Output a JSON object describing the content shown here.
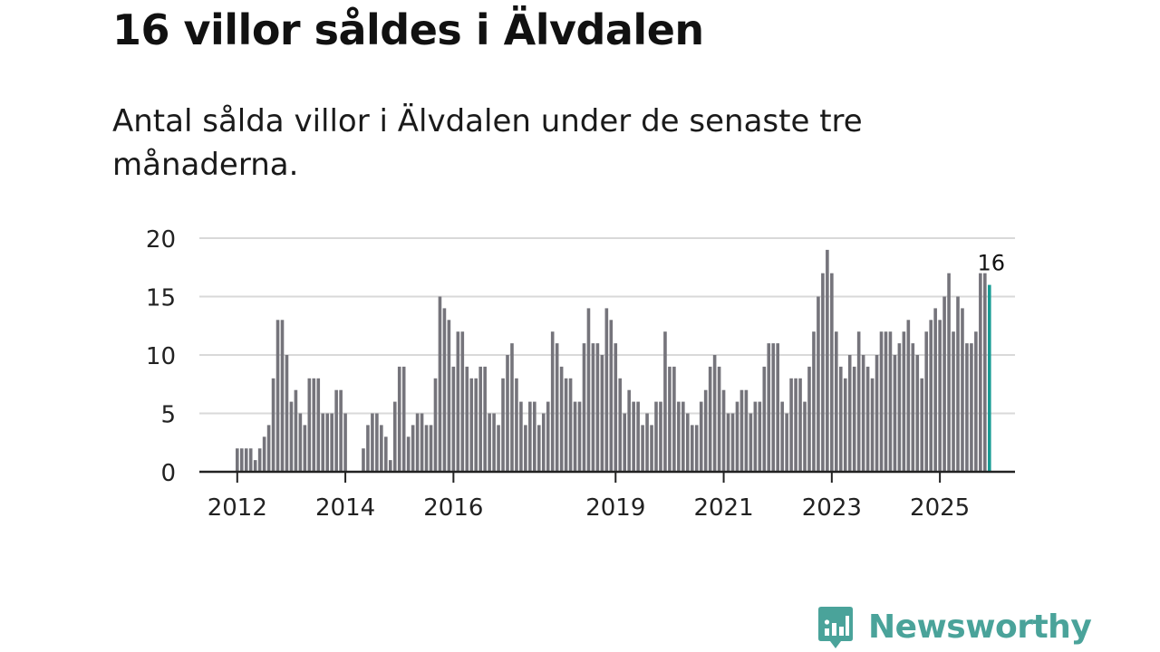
{
  "title": "16 villor såldes i Älvdalen",
  "subtitle": "Antal sålda villor i Älvdalen under de senaste tre månaderna.",
  "colors": {
    "bar": "#75747b",
    "highlight": "#179c94",
    "grid": "#d9d9d9",
    "axis": "#222222",
    "brand": "#4aa39a"
  },
  "chart_data": {
    "type": "bar",
    "title": "16 villor såldes i Älvdalen",
    "xlabel": "",
    "ylabel": "",
    "ylim": [
      0,
      20
    ],
    "yticks": [
      0,
      5,
      10,
      15,
      20
    ],
    "grid": true,
    "start": {
      "year": 2012,
      "month": 1
    },
    "xtick_labels": [
      "2012",
      "2014",
      "2016",
      "2019",
      "2021",
      "2023",
      "2025"
    ],
    "highlight_label": "16",
    "series": [
      {
        "name": "Antal sålda villor (rullande tre månader)",
        "values": [
          2,
          2,
          2,
          2,
          1,
          2,
          3,
          4,
          8,
          13,
          13,
          10,
          6,
          7,
          5,
          4,
          8,
          8,
          8,
          5,
          5,
          5,
          7,
          7,
          5,
          0,
          0,
          0,
          2,
          4,
          5,
          5,
          4,
          3,
          1,
          6,
          9,
          9,
          3,
          4,
          5,
          5,
          4,
          4,
          8,
          15,
          14,
          13,
          9,
          12,
          12,
          9,
          8,
          8,
          9,
          9,
          5,
          5,
          4,
          8,
          10,
          11,
          8,
          6,
          4,
          6,
          6,
          4,
          5,
          6,
          12,
          11,
          9,
          8,
          8,
          6,
          6,
          11,
          14,
          11,
          11,
          10,
          14,
          13,
          11,
          8,
          5,
          7,
          6,
          6,
          4,
          5,
          4,
          6,
          6,
          12,
          9,
          9,
          6,
          6,
          5,
          4,
          4,
          6,
          7,
          9,
          10,
          9,
          7,
          5,
          5,
          6,
          7,
          7,
          5,
          6,
          6,
          9,
          11,
          11,
          11,
          6,
          5,
          8,
          8,
          8,
          6,
          9,
          12,
          15,
          17,
          19,
          17,
          12,
          9,
          8,
          10,
          9,
          12,
          10,
          9,
          8,
          10,
          12,
          12,
          12,
          10,
          11,
          12,
          13,
          11,
          10,
          8,
          12,
          13,
          14,
          13,
          15,
          17,
          12,
          15,
          14,
          11,
          11,
          12,
          17,
          17,
          16
        ]
      }
    ]
  },
  "brand": {
    "name": "Newsworthy",
    "logo_icon": "newsworthy-logo-icon"
  }
}
